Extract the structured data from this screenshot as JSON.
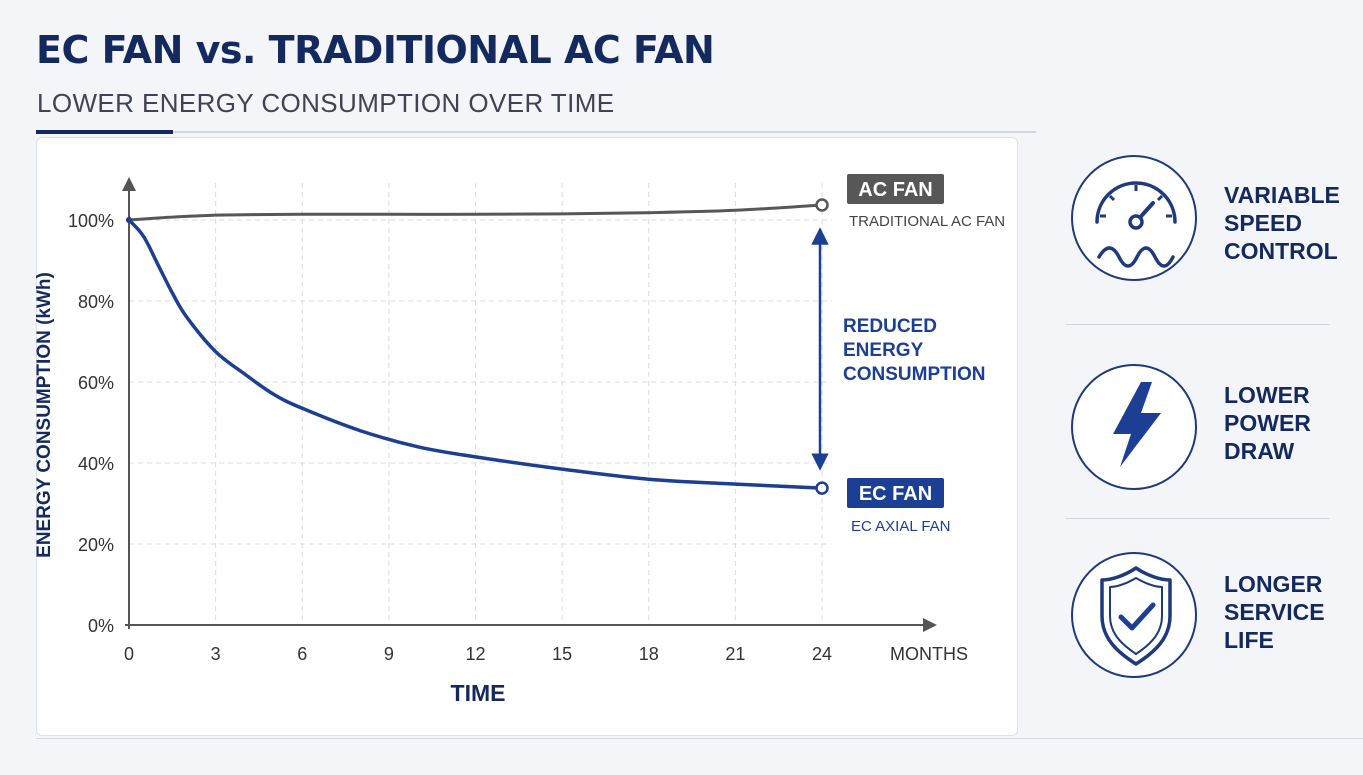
{
  "header": {
    "title": "EC FAN vs. TRADITIONAL AC FAN",
    "subtitle": "LOWER ENERGY CONSUMPTION OVER TIME"
  },
  "colors": {
    "navy": "#14295e",
    "ec_blue": "#1c3f94",
    "ac_gray": "#575757"
  },
  "chart_data": {
    "type": "line",
    "xlabel": "TIME",
    "x_unit_label": "MONTHS",
    "ylabel": "ENERGY CONSUMPTION (kWh)",
    "x_ticks": [
      "0",
      "3",
      "6",
      "9",
      "12",
      "15",
      "18",
      "21",
      "24"
    ],
    "y_ticks": [
      "0%",
      "20%",
      "40%",
      "60%",
      "80%",
      "100%"
    ],
    "xlim": [
      0,
      24
    ],
    "ylim": [
      0,
      100
    ],
    "grid": true,
    "series": [
      {
        "name": "AC FAN",
        "sublabel": "TRADITIONAL AC FAN",
        "color": "#575757",
        "x": [
          0,
          1,
          2,
          3,
          4,
          6,
          9,
          12,
          15,
          18,
          21,
          24
        ],
        "y": [
          100,
          100.5,
          100.9,
          101.2,
          101.3,
          101.4,
          101.4,
          101.4,
          101.5,
          101.8,
          102.4,
          103.7
        ]
      },
      {
        "name": "EC FAN",
        "sublabel": "EC AXIAL FAN",
        "color": "#1c3f94",
        "x": [
          0,
          0.5,
          1,
          1.5,
          2,
          3,
          4,
          5,
          6,
          8,
          10,
          12,
          15,
          18,
          21,
          24
        ],
        "y": [
          100,
          96,
          89,
          82,
          76,
          67.5,
          62,
          57,
          53.5,
          48,
          44,
          41.5,
          38.5,
          36,
          34.8,
          33.8
        ]
      }
    ],
    "annotation": "REDUCED ENERGY CONSUMPTION"
  },
  "features": [
    {
      "label": "VARIABLE SPEED CONTROL",
      "icon": "speedometer-wave-icon"
    },
    {
      "label": "LOWER POWER DRAW",
      "icon": "lightning-bolt-icon"
    },
    {
      "label": "LONGER SERVICE LIFE",
      "icon": "shield-check-icon"
    }
  ]
}
